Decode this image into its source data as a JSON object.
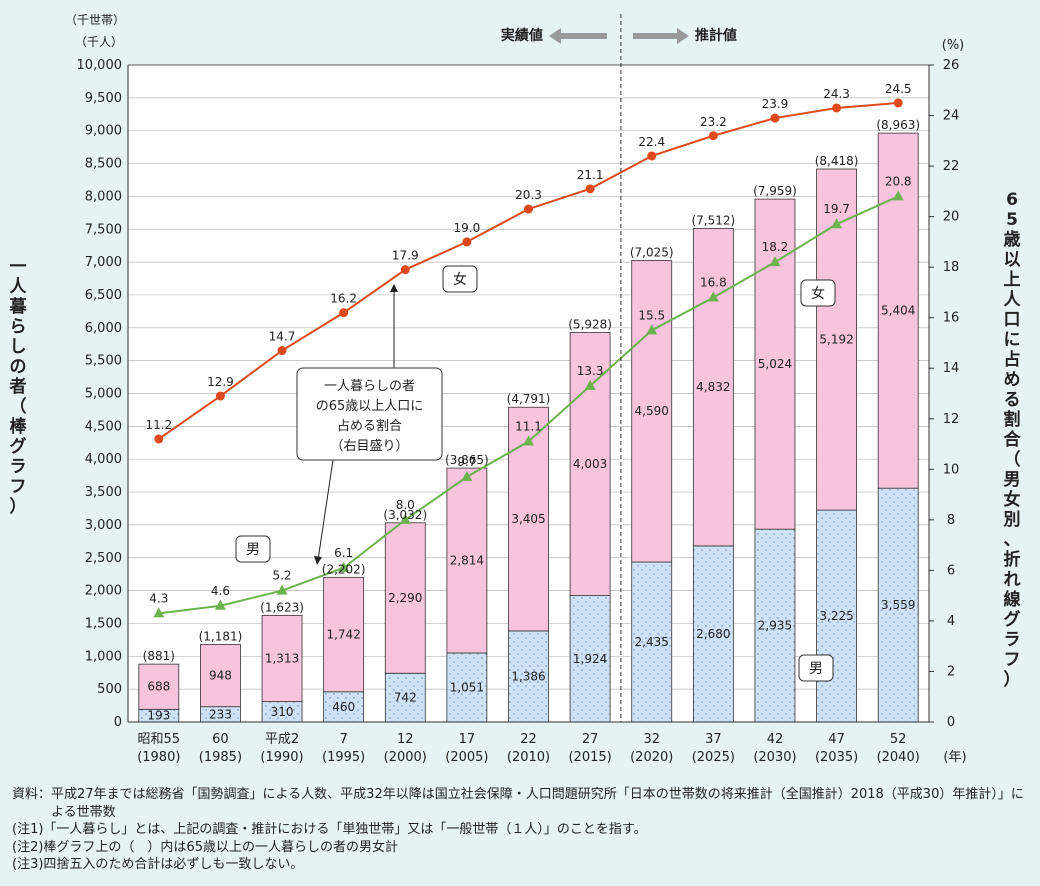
{
  "chart_data": {
    "type": "bar",
    "categories": [
      {
        "era": "昭和55",
        "year": "(1980)"
      },
      {
        "era": "60",
        "year": "(1985)"
      },
      {
        "era": "平成2",
        "year": "(1990)"
      },
      {
        "era": "7",
        "year": "(1995)"
      },
      {
        "era": "12",
        "year": "(2000)"
      },
      {
        "era": "17",
        "year": "(2005)"
      },
      {
        "era": "22",
        "year": "(2010)"
      },
      {
        "era": "27",
        "year": "(2015)"
      },
      {
        "era": "32",
        "year": "(2020)"
      },
      {
        "era": "37",
        "year": "(2025)"
      },
      {
        "era": "42",
        "year": "(2030)"
      },
      {
        "era": "47",
        "year": "(2035)"
      },
      {
        "era": "52",
        "year": "(2040)"
      }
    ],
    "series": [
      {
        "name": "男",
        "kind": "bar",
        "values": [
          193,
          233,
          310,
          460,
          742,
          1051,
          1386,
          1924,
          2435,
          2680,
          2935,
          3225,
          3559
        ],
        "labels": [
          "193",
          "233",
          "310",
          "460",
          "742",
          "1,051",
          "1,386",
          "1,924",
          "2,435",
          "2,680",
          "2,935",
          "3,225",
          "3,559"
        ]
      },
      {
        "name": "女",
        "kind": "bar",
        "values": [
          688,
          948,
          1313,
          1742,
          2290,
          2814,
          3405,
          4003,
          4590,
          4832,
          5024,
          5192,
          5404
        ],
        "labels": [
          "688",
          "948",
          "1,313",
          "1,742",
          "2,290",
          "2,814",
          "3,405",
          "4,003",
          "4,590",
          "4,832",
          "5,024",
          "5,192",
          "5,404"
        ]
      },
      {
        "name": "女",
        "kind": "line",
        "axis": "right",
        "values": [
          11.2,
          12.9,
          14.7,
          16.2,
          17.9,
          19.0,
          20.3,
          21.1,
          22.4,
          23.2,
          23.9,
          24.3,
          24.5
        ],
        "labels": [
          "11.2",
          "12.9",
          "14.7",
          "16.2",
          "17.9",
          "19.0",
          "20.3",
          "21.1",
          "22.4",
          "23.2",
          "23.9",
          "24.3",
          "24.5"
        ]
      },
      {
        "name": "男",
        "kind": "line",
        "axis": "right",
        "values": [
          4.3,
          4.6,
          5.2,
          6.1,
          8.0,
          9.7,
          11.1,
          13.3,
          15.5,
          16.8,
          18.2,
          19.7,
          20.8
        ],
        "labels": [
          "4.3",
          "4.6",
          "5.2",
          "6.1",
          "8.0",
          "9.7",
          "11.1",
          "13.3",
          "15.5",
          "16.8",
          "18.2",
          "19.7",
          "20.8"
        ]
      }
    ],
    "totals": [
      "(881)",
      "(1,181)",
      "(1,623)",
      "(2,202)",
      "(3,032)",
      "(3,865)",
      "(4,791)",
      "(5,928)",
      "(7,025)",
      "(7,512)",
      "(7,959)",
      "(8,418)",
      "(8,963)"
    ],
    "ylim_left": [
      0,
      10000
    ],
    "yticks_left": [
      "0",
      "500",
      "1,000",
      "1,500",
      "2,000",
      "2,500",
      "3,000",
      "3,500",
      "4,000",
      "4,500",
      "5,000",
      "5,500",
      "6,000",
      "6,500",
      "7,000",
      "7,500",
      "8,000",
      "8,500",
      "9,000",
      "9,500",
      "10,000"
    ],
    "ylim_right": [
      0,
      26
    ],
    "yticks_right": [
      "0",
      "2",
      "4",
      "6",
      "8",
      "10",
      "12",
      "14",
      "16",
      "18",
      "20",
      "22",
      "24",
      "26"
    ],
    "ylabel_left": "一人暮らしの者（棒グラフ）",
    "ylabel_right": "65歳以上人口に占める割合（男女別、折れ線グラフ）",
    "unit_left_1": "（千世帯）",
    "unit_left_2": "（千人）",
    "unit_right": "(%)",
    "xunit": "(年)",
    "actual_label": "実績値",
    "projected_label": "推計値",
    "divider_after_index": 7,
    "callout": [
      "一人暮らしの者",
      "の65歳以上人口に",
      "占める割合",
      "（右目盛り）"
    ],
    "box_female": "女",
    "box_male": "男",
    "colors": {
      "male_bar": "#cfe2f5",
      "male_dot": "#7fa3cf",
      "female_bar": "#f7c3dd",
      "female_line": "#de4a1e",
      "male_line": "#6cb34f",
      "background": "#e6f2f4"
    }
  },
  "notes": [
    {
      "label": "資料：",
      "text": "平成27年までは総務省「国勢調査」による人数、平成32年以降は国立社会保障・人口問題研究所「日本の世帯数の将来推計（全国推計）2018（平成30）年推計）」による世帯数"
    },
    {
      "label": "(注1)",
      "text": "「一人暮らし」とは、上記の調査・推計における「単独世帯」又は「一般世帯（１人）」のことを指す。"
    },
    {
      "label": "(注2)",
      "text": "棒グラフ上の（　）内は65歳以上の一人暮らしの者の男女計"
    },
    {
      "label": "(注3)",
      "text": "四捨五入のため合計は必ずしも一致しない。"
    }
  ]
}
